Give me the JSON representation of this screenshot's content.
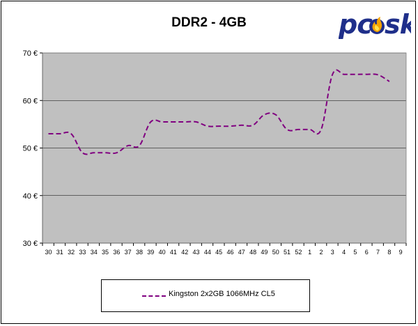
{
  "chart_data": {
    "type": "line",
    "title": "DDR2 - 4GB",
    "xlabel": "",
    "ylabel": "",
    "categories": [
      "30",
      "31",
      "32",
      "33",
      "34",
      "35",
      "36",
      "37",
      "38",
      "39",
      "40",
      "41",
      "42",
      "43",
      "44",
      "45",
      "46",
      "47",
      "48",
      "49",
      "50",
      "51",
      "52",
      "1",
      "2",
      "3",
      "4",
      "5",
      "6",
      "7",
      "8",
      "9"
    ],
    "series": [
      {
        "name": "Kingston 2x2GB 1066MHz CL5",
        "color": "#800080",
        "values": [
          53,
          53,
          53,
          49,
          49,
          49,
          49,
          50.5,
          50.5,
          55.5,
          55.5,
          55.5,
          55.5,
          55.5,
          54.6,
          54.6,
          54.6,
          54.8,
          54.8,
          57,
          57,
          53.9,
          53.9,
          53.9,
          53.9,
          65.5,
          65.5,
          65.5,
          65.5,
          65.4,
          64,
          null
        ]
      }
    ],
    "ylim": [
      30,
      70
    ],
    "yticks": [
      30,
      40,
      50,
      60,
      70
    ],
    "ytick_labels": [
      "30 €",
      "40 €",
      "50 €",
      "60 €",
      "70 €"
    ],
    "grid": true,
    "plot_background": "#c0c0c0",
    "legend_position": "bottom"
  },
  "logo": {
    "text_a": "pc",
    "text_b": "sk",
    "color": "#1f2f8a",
    "flame_color": "#f4a300"
  }
}
